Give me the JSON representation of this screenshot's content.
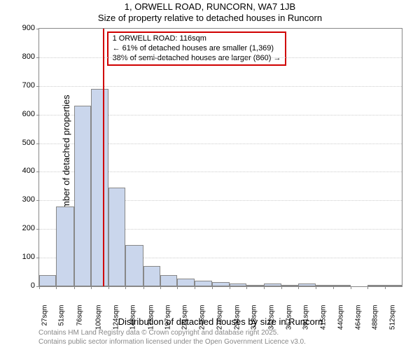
{
  "title1": "1, ORWELL ROAD, RUNCORN, WA7 1JB",
  "title2": "Size of property relative to detached houses in Runcorn",
  "ylabel": "Number of detached properties",
  "xlabel": "Distribution of detached houses by size in Runcorn",
  "footer1": "Contains HM Land Registry data © Crown copyright and database right 2025.",
  "footer2": "Contains public sector information licensed under the Open Government Licence v3.0.",
  "annotation": {
    "line1": "1 ORWELL ROAD: 116sqm",
    "line2": "← 61% of detached houses are smaller (1,369)",
    "line3": "38% of semi-detached houses are larger (860) →"
  },
  "chart": {
    "type": "histogram",
    "background_color": "#ffffff",
    "bar_fill": "#cad6ec",
    "bar_border": "#888888",
    "grid_color": "#cccccc",
    "axis_color": "#888888",
    "marker_color": "#d00000",
    "annotation_border": "#d00000",
    "ylim": [
      0,
      900
    ],
    "ytick_step": 100,
    "x_unit": "sqm",
    "x_bins": [
      27,
      51,
      76,
      100,
      124,
      148,
      173,
      197,
      221,
      245,
      270,
      294,
      318,
      342,
      367,
      391,
      415,
      440,
      464,
      488,
      512
    ],
    "counts": [
      40,
      280,
      630,
      690,
      345,
      145,
      70,
      38,
      28,
      20,
      15,
      10,
      6,
      10,
      4,
      10,
      3,
      2,
      0,
      2,
      1
    ],
    "marker_value": 116,
    "bar_gap_ratio": 0.0
  }
}
